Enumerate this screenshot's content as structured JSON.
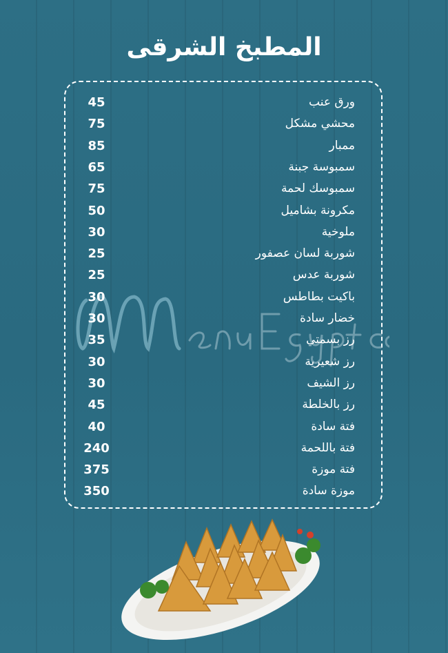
{
  "title": "المطبخ الشرقى",
  "watermark": "MenuEgypt.com",
  "colors": {
    "background": "#2a6b80",
    "text": "#ffffff"
  },
  "items": [
    {
      "name": "ورق عنب",
      "price": "45"
    },
    {
      "name": "محشي مشكل",
      "price": "75"
    },
    {
      "name": "ممبار",
      "price": "85"
    },
    {
      "name": "سمبوسة جبنة",
      "price": "65"
    },
    {
      "name": "سمبوسك لحمة",
      "price": "75"
    },
    {
      "name": "مكرونة بشاميل",
      "price": "50"
    },
    {
      "name": "ملوخية",
      "price": "30"
    },
    {
      "name": "شوربة لسان عصفور",
      "price": "25"
    },
    {
      "name": "شوربة عدس",
      "price": "25"
    },
    {
      "name": "باكيت بطاطس",
      "price": "30"
    },
    {
      "name": "خضار سادة",
      "price": "30"
    },
    {
      "name": "رز بسمتي",
      "price": "35"
    },
    {
      "name": "رز شعيرية",
      "price": "30"
    },
    {
      "name": "رز الشيف",
      "price": "30"
    },
    {
      "name": "رز بالخلطة",
      "price": "45"
    },
    {
      "name": "فتة سادة",
      "price": "40"
    },
    {
      "name": "فتة باللحمة",
      "price": "240"
    },
    {
      "name": "فتة موزة",
      "price": "375"
    },
    {
      "name": "موزة سادة",
      "price": "350"
    }
  ]
}
